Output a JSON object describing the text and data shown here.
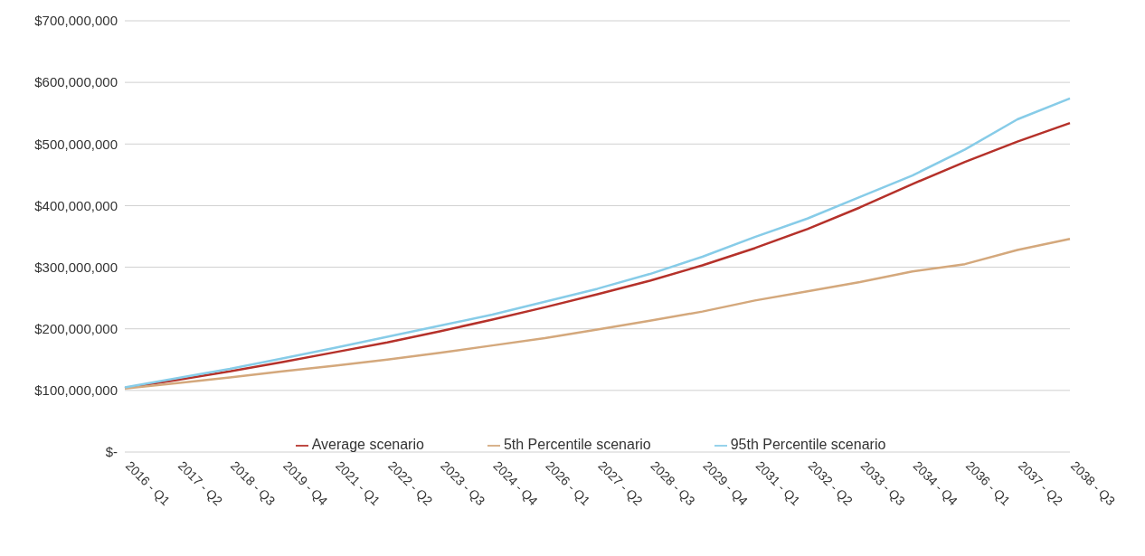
{
  "chart_data": {
    "type": "line",
    "categories": [
      "2016 - Q1",
      "2017 - Q2",
      "2018 - Q3",
      "2019 - Q4",
      "2021 - Q1",
      "2022 - Q2",
      "2023 - Q3",
      "2024 - Q4",
      "2026 - Q1",
      "2027 - Q2",
      "2028 - Q3",
      "2029 - Q4",
      "2031 - Q1",
      "2032 - Q2",
      "2033 - Q3",
      "2034 - Q4",
      "2036 - Q1",
      "2037 - Q2",
      "2038 - Q3"
    ],
    "series": [
      {
        "name": "Average scenario",
        "color": "#b5312a",
        "values": [
          104000000,
          117000000,
          131000000,
          146000000,
          162000000,
          178000000,
          196000000,
          215000000,
          235000000,
          256000000,
          278000000,
          303000000,
          331000000,
          362000000,
          397000000,
          435000000,
          471000000,
          504000000,
          534000000
        ]
      },
      {
        "name": "5th Percentile scenario",
        "color": "#d4a87c",
        "values": [
          103000000,
          112000000,
          121000000,
          131000000,
          140000000,
          150000000,
          161000000,
          173000000,
          185000000,
          199000000,
          213000000,
          228000000,
          246000000,
          261000000,
          276000000,
          293000000,
          305000000,
          328000000,
          346000000
        ]
      },
      {
        "name": "95th Percentile scenario",
        "color": "#87cce8",
        "values": [
          105000000,
          120000000,
          135000000,
          152000000,
          169000000,
          187000000,
          205000000,
          223000000,
          244000000,
          265000000,
          289000000,
          317000000,
          349000000,
          379000000,
          414000000,
          449000000,
          491000000,
          540000000,
          574000000
        ]
      }
    ],
    "ylim": [
      0,
      700000000
    ],
    "yticks": [
      {
        "value": 0,
        "label": "$-"
      },
      {
        "value": 100000000,
        "label": "$100,000,000"
      },
      {
        "value": 200000000,
        "label": "$200,000,000"
      },
      {
        "value": 300000000,
        "label": "$300,000,000"
      },
      {
        "value": 400000000,
        "label": "$400,000,000"
      },
      {
        "value": 500000000,
        "label": "$500,000,000"
      },
      {
        "value": 600000000,
        "label": "$600,000,000"
      },
      {
        "value": 700000000,
        "label": "$700,000,000"
      }
    ],
    "grid": "y",
    "legend": "bottom",
    "marker": "none",
    "line_style": "solid"
  }
}
